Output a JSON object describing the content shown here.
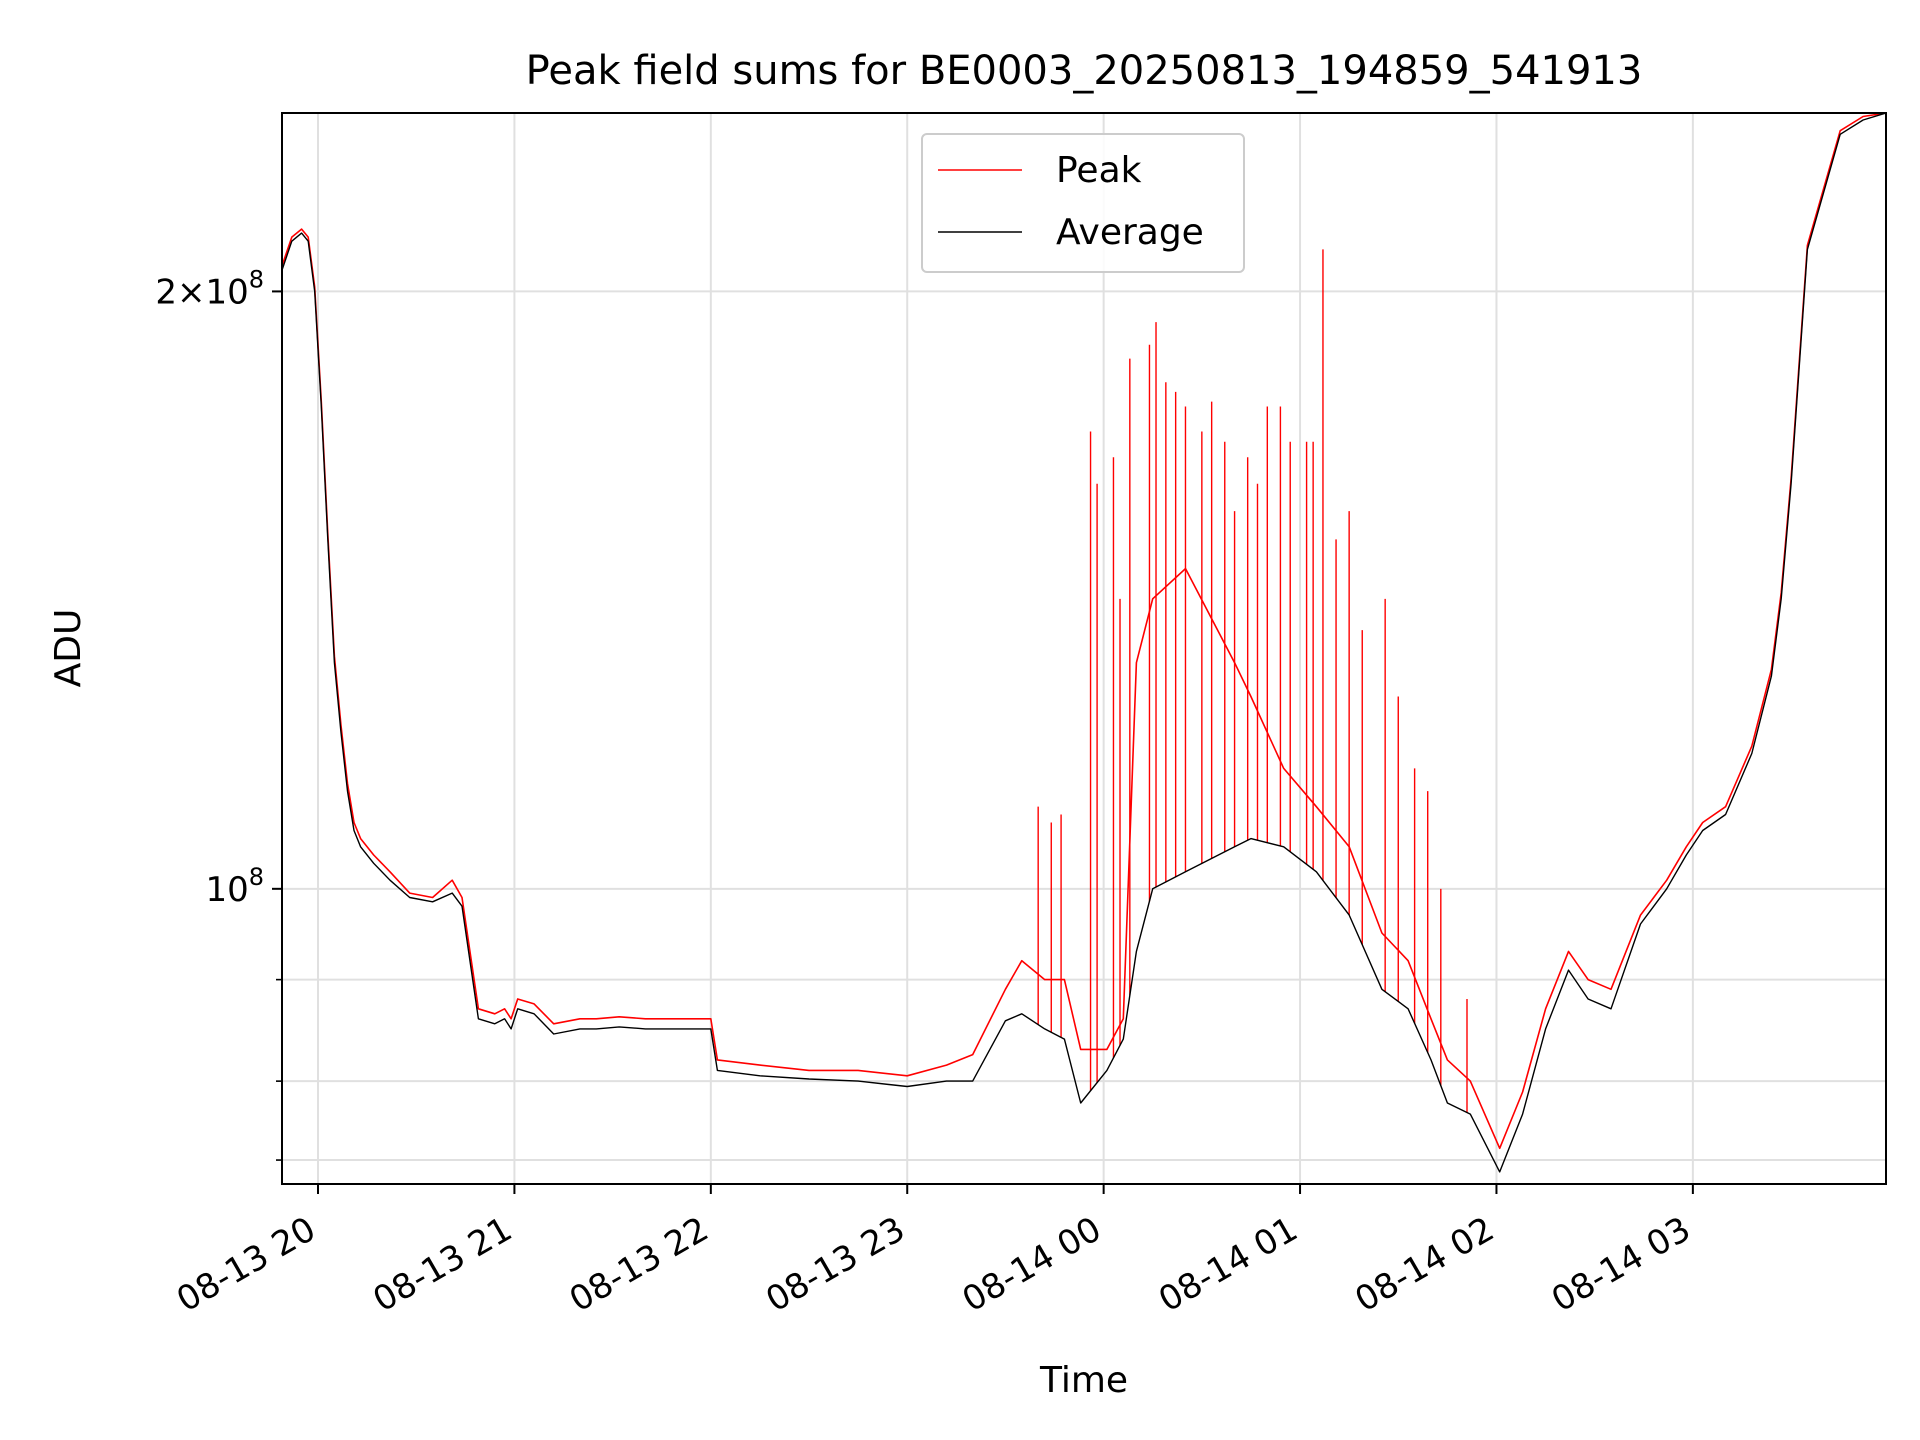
{
  "chart_data": {
    "type": "line",
    "title": "Peak field sums for BE0003_20250813_194859_541913",
    "xlabel": "Time",
    "ylabel": "ADU",
    "y_scale": "log",
    "xlim": [
      "2025-08-13 19:49",
      "2025-08-14 03:59"
    ],
    "ylim": [
      71000000,
      246000000
    ],
    "x_ticks": [
      {
        "t": "2025-08-13 20:00",
        "label": "08-13 20"
      },
      {
        "t": "2025-08-13 21:00",
        "label": "08-13 21"
      },
      {
        "t": "2025-08-13 22:00",
        "label": "08-13 22"
      },
      {
        "t": "2025-08-13 23:00",
        "label": "08-13 23"
      },
      {
        "t": "2025-08-14 00:00",
        "label": "08-14 00"
      },
      {
        "t": "2025-08-14 01:00",
        "label": "08-14 01"
      },
      {
        "t": "2025-08-14 02:00",
        "label": "08-14 02"
      },
      {
        "t": "2025-08-14 03:00",
        "label": "08-14 03"
      }
    ],
    "y_ticks": [
      {
        "value": 100000000,
        "mantissa": "",
        "base": "10",
        "exp": "8"
      },
      {
        "value": 200000000,
        "mantissa": "2×",
        "base": "10",
        "exp": "8"
      }
    ],
    "y_minor_ticks": [
      73000000,
      80000000,
      90000000
    ],
    "grid": true,
    "legend_position": "upper center",
    "series": [
      {
        "name": "Average",
        "color": "#000000",
        "x": [
          "2025-08-13 19:49",
          "2025-08-13 19:52",
          "2025-08-13 19:55",
          "2025-08-13 19:57",
          "2025-08-13 19:59",
          "2025-08-13 20:01",
          "2025-08-13 20:03",
          "2025-08-13 20:05",
          "2025-08-13 20:07",
          "2025-08-13 20:09",
          "2025-08-13 20:11",
          "2025-08-13 20:13",
          "2025-08-13 20:17",
          "2025-08-13 20:22",
          "2025-08-13 20:28",
          "2025-08-13 20:35",
          "2025-08-13 20:41",
          "2025-08-13 20:44",
          "2025-08-13 20:49",
          "2025-08-13 20:54",
          "2025-08-13 20:57",
          "2025-08-13 20:59",
          "2025-08-13 21:01",
          "2025-08-13 21:06",
          "2025-08-13 21:12",
          "2025-08-13 21:20",
          "2025-08-13 21:25",
          "2025-08-13 21:32",
          "2025-08-13 21:40",
          "2025-08-13 21:48",
          "2025-08-13 22:00",
          "2025-08-13 22:02",
          "2025-08-13 22:15",
          "2025-08-13 22:30",
          "2025-08-13 22:45",
          "2025-08-13 23:00",
          "2025-08-13 23:12",
          "2025-08-13 23:20",
          "2025-08-13 23:30",
          "2025-08-13 23:35",
          "2025-08-13 23:42",
          "2025-08-13 23:48",
          "2025-08-13 23:53",
          "2025-08-14 00:01",
          "2025-08-14 00:06",
          "2025-08-14 00:10",
          "2025-08-14 00:15",
          "2025-08-14 00:25",
          "2025-08-14 00:40",
          "2025-08-14 00:45",
          "2025-08-14 00:55",
          "2025-08-14 01:05",
          "2025-08-14 01:15",
          "2025-08-14 01:25",
          "2025-08-14 01:33",
          "2025-08-14 01:40",
          "2025-08-14 01:45",
          "2025-08-14 01:52",
          "2025-08-14 02:01",
          "2025-08-14 02:08",
          "2025-08-14 02:15",
          "2025-08-14 02:22",
          "2025-08-14 02:28",
          "2025-08-14 02:35",
          "2025-08-14 02:44",
          "2025-08-14 02:52",
          "2025-08-14 02:58",
          "2025-08-14 03:03",
          "2025-08-14 03:10",
          "2025-08-14 03:18",
          "2025-08-14 03:24",
          "2025-08-14 03:27",
          "2025-08-14 03:30",
          "2025-08-14 03:35",
          "2025-08-14 03:45",
          "2025-08-14 03:52",
          "2025-08-14 03:59"
        ],
        "y": [
          205000000,
          212000000,
          214000000,
          212000000,
          200000000,
          175000000,
          150000000,
          130000000,
          120000000,
          112000000,
          107000000,
          105000000,
          103000000,
          101000000,
          99000000,
          98500000,
          99500000,
          98000000,
          86000000,
          85500000,
          86000000,
          85000000,
          87000000,
          86500000,
          84500000,
          85000000,
          85000000,
          85200000,
          85000000,
          85000000,
          85000000,
          81000000,
          80500000,
          80200000,
          80000000,
          79500000,
          80000000,
          80000000,
          85800000,
          86500000,
          85000000,
          84000000,
          78000000,
          81000000,
          84000000,
          93000000,
          100000000,
          102000000,
          105000000,
          106000000,
          105000000,
          102000000,
          97000000,
          89000000,
          87000000,
          82000000,
          78000000,
          77000000,
          72000000,
          77000000,
          85000000,
          91000000,
          88000000,
          87000000,
          96000000,
          100000000,
          104000000,
          107000000,
          109000000,
          117000000,
          128000000,
          140000000,
          160000000,
          210000000,
          240000000,
          244000000,
          246000000
        ]
      },
      {
        "name": "Peak",
        "color": "#ff0000",
        "x": [
          "2025-08-13 19:49",
          "2025-08-13 19:52",
          "2025-08-13 19:55",
          "2025-08-13 19:57",
          "2025-08-13 19:59",
          "2025-08-13 20:01",
          "2025-08-13 20:03",
          "2025-08-13 20:05",
          "2025-08-13 20:07",
          "2025-08-13 20:09",
          "2025-08-13 20:11",
          "2025-08-13 20:13",
          "2025-08-13 20:17",
          "2025-08-13 20:22",
          "2025-08-13 20:28",
          "2025-08-13 20:35",
          "2025-08-13 20:41",
          "2025-08-13 20:44",
          "2025-08-13 20:49",
          "2025-08-13 20:54",
          "2025-08-13 20:57",
          "2025-08-13 20:59",
          "2025-08-13 21:01",
          "2025-08-13 21:06",
          "2025-08-13 21:12",
          "2025-08-13 21:20",
          "2025-08-13 21:25",
          "2025-08-13 21:32",
          "2025-08-13 21:40",
          "2025-08-13 21:48",
          "2025-08-13 22:00",
          "2025-08-13 22:02",
          "2025-08-13 22:15",
          "2025-08-13 22:30",
          "2025-08-13 22:45",
          "2025-08-13 23:00",
          "2025-08-13 23:12",
          "2025-08-13 23:20",
          "2025-08-13 23:30",
          "2025-08-13 23:35",
          "2025-08-13 23:42",
          "2025-08-13 23:48",
          "2025-08-13 23:53",
          "2025-08-14 00:01",
          "2025-08-14 00:06",
          "2025-08-14 00:10",
          "2025-08-14 00:15",
          "2025-08-14 00:25",
          "2025-08-14 00:40",
          "2025-08-14 00:45",
          "2025-08-14 00:55",
          "2025-08-14 01:05",
          "2025-08-14 01:15",
          "2025-08-14 01:25",
          "2025-08-14 01:33",
          "2025-08-14 01:40",
          "2025-08-14 01:45",
          "2025-08-14 01:52",
          "2025-08-14 02:01",
          "2025-08-14 02:08",
          "2025-08-14 02:15",
          "2025-08-14 02:22",
          "2025-08-14 02:28",
          "2025-08-14 02:35",
          "2025-08-14 02:44",
          "2025-08-14 02:52",
          "2025-08-14 02:58",
          "2025-08-14 03:03",
          "2025-08-14 03:10",
          "2025-08-14 03:18",
          "2025-08-14 03:24",
          "2025-08-14 03:27",
          "2025-08-14 03:30",
          "2025-08-14 03:35",
          "2025-08-14 03:45",
          "2025-08-14 03:52",
          "2025-08-14 03:59"
        ],
        "y": [
          206000000,
          213000000,
          215000000,
          213000000,
          201000000,
          176000000,
          151000000,
          131000000,
          121000000,
          113000000,
          108000000,
          106000000,
          104000000,
          102000000,
          99500000,
          99000000,
          101000000,
          99000000,
          87000000,
          86500000,
          87000000,
          86000000,
          88000000,
          87500000,
          85500000,
          86000000,
          86000000,
          86200000,
          86000000,
          86000000,
          86000000,
          82000000,
          81500000,
          81000000,
          81000000,
          80500000,
          81500000,
          82500000,
          89000000,
          92000000,
          90000000,
          90000000,
          83000000,
          83000000,
          86000000,
          130000000,
          140000000,
          145000000,
          130000000,
          125000000,
          115000000,
          110000000,
          105000000,
          95000000,
          92000000,
          86000000,
          82000000,
          80000000,
          74000000,
          79000000,
          87000000,
          93000000,
          90000000,
          89000000,
          97000000,
          101000000,
          105000000,
          108000000,
          110000000,
          118000000,
          129000000,
          141000000,
          161000000,
          211000000,
          241000000,
          245000000,
          246000000
        ]
      }
    ],
    "peak_spikes": [
      {
        "x": "2025-08-13 23:40",
        "y": 110000000
      },
      {
        "x": "2025-08-13 23:44",
        "y": 108000000
      },
      {
        "x": "2025-08-13 23:47",
        "y": 109000000
      },
      {
        "x": "2025-08-13 23:56",
        "y": 170000000
      },
      {
        "x": "2025-08-13 23:58",
        "y": 160000000
      },
      {
        "x": "2025-08-14 00:03",
        "y": 165000000
      },
      {
        "x": "2025-08-14 00:05",
        "y": 140000000
      },
      {
        "x": "2025-08-14 00:08",
        "y": 185000000
      },
      {
        "x": "2025-08-14 00:14",
        "y": 188000000
      },
      {
        "x": "2025-08-14 00:16",
        "y": 193000000
      },
      {
        "x": "2025-08-14 00:19",
        "y": 180000000
      },
      {
        "x": "2025-08-14 00:22",
        "y": 178000000
      },
      {
        "x": "2025-08-14 00:25",
        "y": 175000000
      },
      {
        "x": "2025-08-14 00:30",
        "y": 170000000
      },
      {
        "x": "2025-08-14 00:33",
        "y": 176000000
      },
      {
        "x": "2025-08-14 00:37",
        "y": 168000000
      },
      {
        "x": "2025-08-14 00:40",
        "y": 155000000
      },
      {
        "x": "2025-08-14 00:44",
        "y": 165000000
      },
      {
        "x": "2025-08-14 00:47",
        "y": 160000000
      },
      {
        "x": "2025-08-14 00:50",
        "y": 175000000
      },
      {
        "x": "2025-08-14 00:54",
        "y": 175000000
      },
      {
        "x": "2025-08-14 00:57",
        "y": 168000000
      },
      {
        "x": "2025-08-14 01:02",
        "y": 168000000
      },
      {
        "x": "2025-08-14 01:04",
        "y": 168000000
      },
      {
        "x": "2025-08-14 01:07",
        "y": 210000000
      },
      {
        "x": "2025-08-14 01:11",
        "y": 150000000
      },
      {
        "x": "2025-08-14 01:15",
        "y": 155000000
      },
      {
        "x": "2025-08-14 01:19",
        "y": 135000000
      },
      {
        "x": "2025-08-14 01:26",
        "y": 140000000
      },
      {
        "x": "2025-08-14 01:30",
        "y": 125000000
      },
      {
        "x": "2025-08-14 01:35",
        "y": 115000000
      },
      {
        "x": "2025-08-14 01:39",
        "y": 112000000
      },
      {
        "x": "2025-08-14 01:43",
        "y": 100000000
      },
      {
        "x": "2025-08-14 01:51",
        "y": 88000000
      }
    ]
  },
  "legend": {
    "peak_label": "Peak",
    "average_label": "Average"
  }
}
